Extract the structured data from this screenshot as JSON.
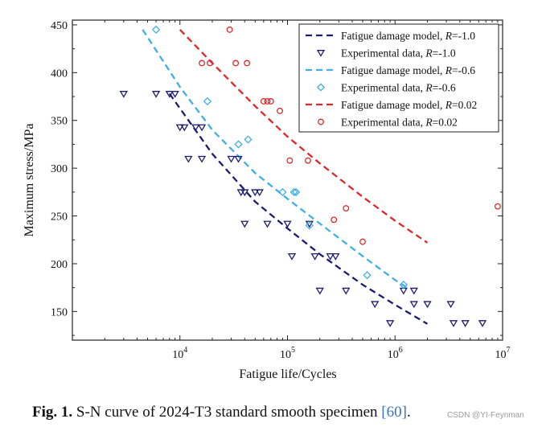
{
  "chart_data": {
    "type": "scatter",
    "title": "",
    "xlabel": "Fatigue life/Cycles",
    "ylabel": "Maximum stress/MPa",
    "xscale": "log",
    "xlim": [
      1000,
      10000000
    ],
    "ylim": [
      120,
      455
    ],
    "xticks": [
      {
        "value": 10000,
        "mantissa": "10",
        "exp": "4"
      },
      {
        "value": 100000,
        "mantissa": "10",
        "exp": "5"
      },
      {
        "value": 1000000,
        "mantissa": "10",
        "exp": "6"
      },
      {
        "value": 10000000,
        "mantissa": "10",
        "exp": "7"
      }
    ],
    "yticks": [
      150,
      200,
      250,
      300,
      350,
      400,
      450
    ],
    "legend_position": "top-right",
    "series": [
      {
        "name": "Fatigue damage model, R=-1.0",
        "legend_prefix": "Fatigue damage model, ",
        "legend_r": "R",
        "legend_suffix": "=-1.0",
        "kind": "line",
        "color": "#1c1c6e",
        "x": [
          8000,
          20000,
          50000,
          100000,
          200000,
          500000,
          1000000,
          2000000
        ],
        "y": [
          378,
          315,
          265,
          237,
          210,
          178,
          157,
          137
        ]
      },
      {
        "name": "Experimental data, R=-1.0",
        "legend_prefix": "Experimental data, ",
        "legend_r": "R",
        "legend_suffix": "=-1.0",
        "kind": "scatter",
        "marker": "triangle-down",
        "color": "#1c1c6e",
        "x": [
          3000,
          6000,
          8000,
          9000,
          10000,
          11000,
          12000,
          14000,
          16000,
          16000,
          30000,
          35000,
          37000,
          40000,
          40000,
          50000,
          55000,
          65000,
          100000,
          110000,
          160000,
          180000,
          200000,
          250000,
          280000,
          350000,
          650000,
          900000,
          1200000,
          1500000,
          1500000,
          2000000,
          3300000,
          3500000,
          4500000,
          6500000
        ],
        "y": [
          378,
          378,
          378,
          378,
          343,
          343,
          310,
          343,
          343,
          310,
          310,
          310,
          275,
          275,
          242,
          275,
          275,
          242,
          242,
          208,
          242,
          208,
          172,
          208,
          208,
          172,
          158,
          138,
          172,
          158,
          172,
          158,
          158,
          138,
          138,
          138
        ]
      },
      {
        "name": "Fatigue damage model, R=-0.6",
        "legend_prefix": "Fatigue damage model, ",
        "legend_r": "R",
        "legend_suffix": "=-0.6",
        "kind": "line",
        "color": "#3eb0e6",
        "x": [
          4500,
          10000,
          20000,
          50000,
          100000,
          200000,
          500000,
          1000000,
          1300000
        ],
        "y": [
          445,
          385,
          340,
          295,
          268,
          242,
          208,
          183,
          175
        ]
      },
      {
        "name": "Experimental data, R=-0.6",
        "legend_prefix": "Experimental data, ",
        "legend_r": "R",
        "legend_suffix": "=-0.6",
        "kind": "scatter",
        "marker": "diamond",
        "color": "#3eb0e6",
        "x": [
          6000,
          18000,
          35000,
          43000,
          90000,
          115000,
          120000,
          160000,
          550000,
          1200000
        ],
        "y": [
          445,
          370,
          325,
          330,
          275,
          275,
          275,
          240,
          188,
          178
        ]
      },
      {
        "name": "Fatigue damage model, R=0.02",
        "legend_prefix": "Fatigue damage model, ",
        "legend_r": "R",
        "legend_suffix": "=0.02",
        "kind": "line",
        "color": "#e02828",
        "x": [
          10000,
          20000,
          50000,
          100000,
          200000,
          500000,
          1000000,
          2000000
        ],
        "y": [
          445,
          410,
          365,
          333,
          305,
          270,
          245,
          222
        ]
      },
      {
        "name": "Experimental data, R=0.02",
        "legend_prefix": "Experimental data, ",
        "legend_r": "R",
        "legend_suffix": "=0.02",
        "kind": "scatter",
        "marker": "circle",
        "color": "#e02828",
        "x": [
          16000,
          19000,
          29000,
          33000,
          42000,
          60000,
          65000,
          70000,
          85000,
          105000,
          155000,
          270000,
          350000,
          500000,
          9000000
        ],
        "y": [
          410,
          410,
          445,
          410,
          410,
          370,
          370,
          370,
          360,
          308,
          308,
          246,
          258,
          223,
          260
        ]
      }
    ]
  },
  "caption": {
    "label": "Fig. 1.",
    "text": "S-N curve of 2024-T3 standard smooth specimen ",
    "reference": "[60]",
    "end": "."
  },
  "watermark": "CSDN @YI-Feynman"
}
